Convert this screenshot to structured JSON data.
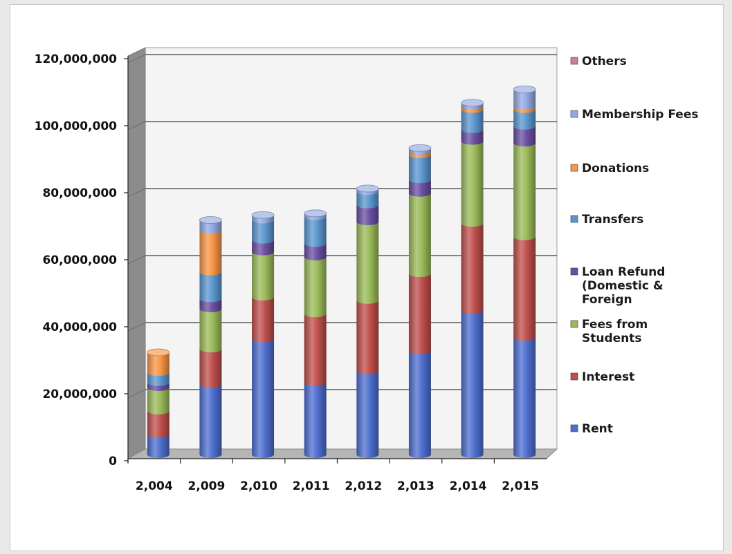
{
  "chart_data": {
    "type": "bar",
    "stacked": true,
    "style": "3d-cylinder",
    "title": "",
    "xlabel": "",
    "ylabel": "",
    "ylim": [
      0,
      120000000
    ],
    "yticks": [
      "0",
      "20,000,000",
      "40,000,000",
      "60,000,000",
      "80,000,000",
      "100,000,000",
      "120,000,000"
    ],
    "grid": true,
    "legend_position": "right",
    "categories": [
      "2,004",
      "2,009",
      "2,010",
      "2,011",
      "2,012",
      "2,013",
      "2,014",
      "2,015"
    ],
    "series": [
      {
        "name": "Rent",
        "color": "#4f6fd0",
        "values": [
          6000000,
          21000000,
          34500000,
          21500000,
          25000000,
          31000000,
          43000000,
          35000000
        ]
      },
      {
        "name": "Interest",
        "color": "#c0504d",
        "values": [
          7000000,
          10500000,
          12500000,
          20500000,
          21000000,
          23000000,
          26000000,
          30000000
        ]
      },
      {
        "name": "Fees from Students",
        "color": "#9bbb59",
        "values": [
          7000000,
          12000000,
          13500000,
          17000000,
          23500000,
          24000000,
          24500000,
          28000000
        ]
      },
      {
        "name": "Loan Refund (Domestic & Foreign",
        "color": "#6a4fa2",
        "values": [
          1500000,
          3000000,
          3500000,
          4000000,
          5000000,
          4000000,
          3500000,
          5000000
        ]
      },
      {
        "name": "Transfers",
        "color": "#5b97cf",
        "values": [
          3000000,
          8000000,
          6000000,
          8000000,
          4000000,
          7500000,
          6000000,
          5000000
        ]
      },
      {
        "name": "Donations",
        "color": "#f79646",
        "values": [
          6000000,
          12500000,
          0,
          0,
          0,
          1000000,
          1000000,
          1000000
        ]
      },
      {
        "name": "Membership Fees",
        "color": "#93a9e0",
        "values": [
          0,
          3000000,
          1500000,
          1000000,
          900000,
          1000000,
          1000000,
          5000000
        ]
      },
      {
        "name": "Others",
        "color": "#d07f8c",
        "values": [
          0,
          0,
          0,
          0,
          0,
          0,
          0,
          0
        ]
      }
    ]
  }
}
